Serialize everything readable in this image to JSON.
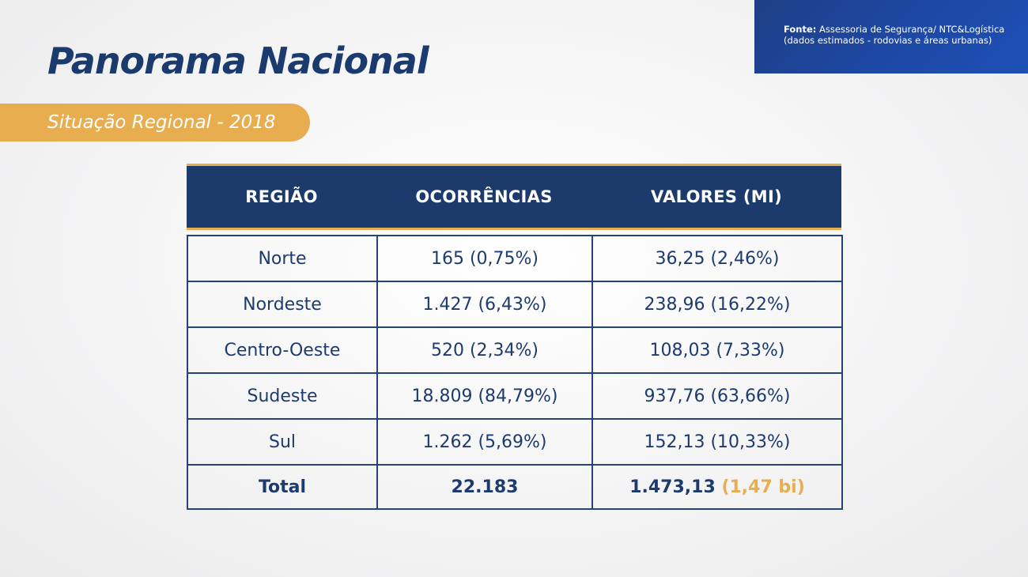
{
  "source": {
    "label": "Fonte:",
    "line1": "Assessoria de Segurança/ NTC&Logística",
    "line2": "(dados estimados - rodovias e áreas urbanas)"
  },
  "title": "Panorama Nacional",
  "subtitle": "Situação Regional - 2018",
  "colors": {
    "navy": "#1c3a6c",
    "accent": "#e8ad4e",
    "source_box": "#1d49a8"
  },
  "table": {
    "headers": [
      "REGIÃO",
      "OCORRÊNCIAS",
      "VALORES (MI)"
    ],
    "rows": [
      [
        "Norte",
        "165 (0,75%)",
        "36,25 (2,46%)"
      ],
      [
        "Nordeste",
        "1.427 (6,43%)",
        "238,96 (16,22%)"
      ],
      [
        "Centro-Oeste",
        "520 (2,34%)",
        "108,03 (7,33%)"
      ],
      [
        "Sudeste",
        "18.809 (84,79%)",
        "937,76 (63,66%)"
      ],
      [
        "Sul",
        "1.262 (5,69%)",
        "152,13 (10,33%)"
      ]
    ],
    "total": {
      "label": "Total",
      "ocorrencias": "22.183",
      "valores": "1.473,13",
      "valores_extra": "(1,47 bi)"
    }
  }
}
